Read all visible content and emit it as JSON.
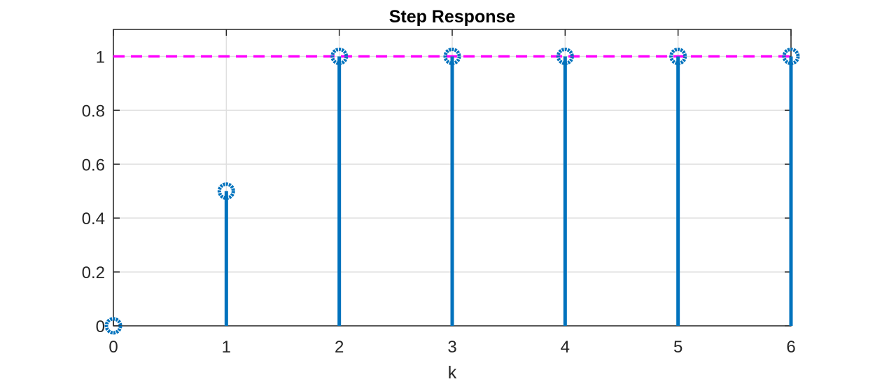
{
  "chart_data": {
    "type": "stem",
    "title": "Step Response",
    "xlabel": "k",
    "ylabel": "",
    "xlim": [
      0,
      6
    ],
    "ylim": [
      0,
      1.1
    ],
    "xticks": [
      0,
      1,
      2,
      3,
      4,
      5,
      6
    ],
    "xtick_labels": [
      "0",
      "1",
      "2",
      "3",
      "4",
      "5",
      "6"
    ],
    "yticks": [
      0,
      0.2,
      0.4,
      0.6,
      0.8,
      1
    ],
    "ytick_labels": [
      "0",
      "0.2",
      "0.4",
      "0.6",
      "0.8",
      "1"
    ],
    "grid": true,
    "series": [
      {
        "x": [
          0,
          1,
          2,
          3,
          4,
          5,
          6
        ],
        "values": [
          0,
          0.5,
          1,
          1,
          1,
          1,
          1
        ],
        "color": "#0072bd",
        "marker": "circle"
      }
    ],
    "reference_line": {
      "y": 1,
      "color": "#ff00ff",
      "style": "dashed"
    }
  }
}
